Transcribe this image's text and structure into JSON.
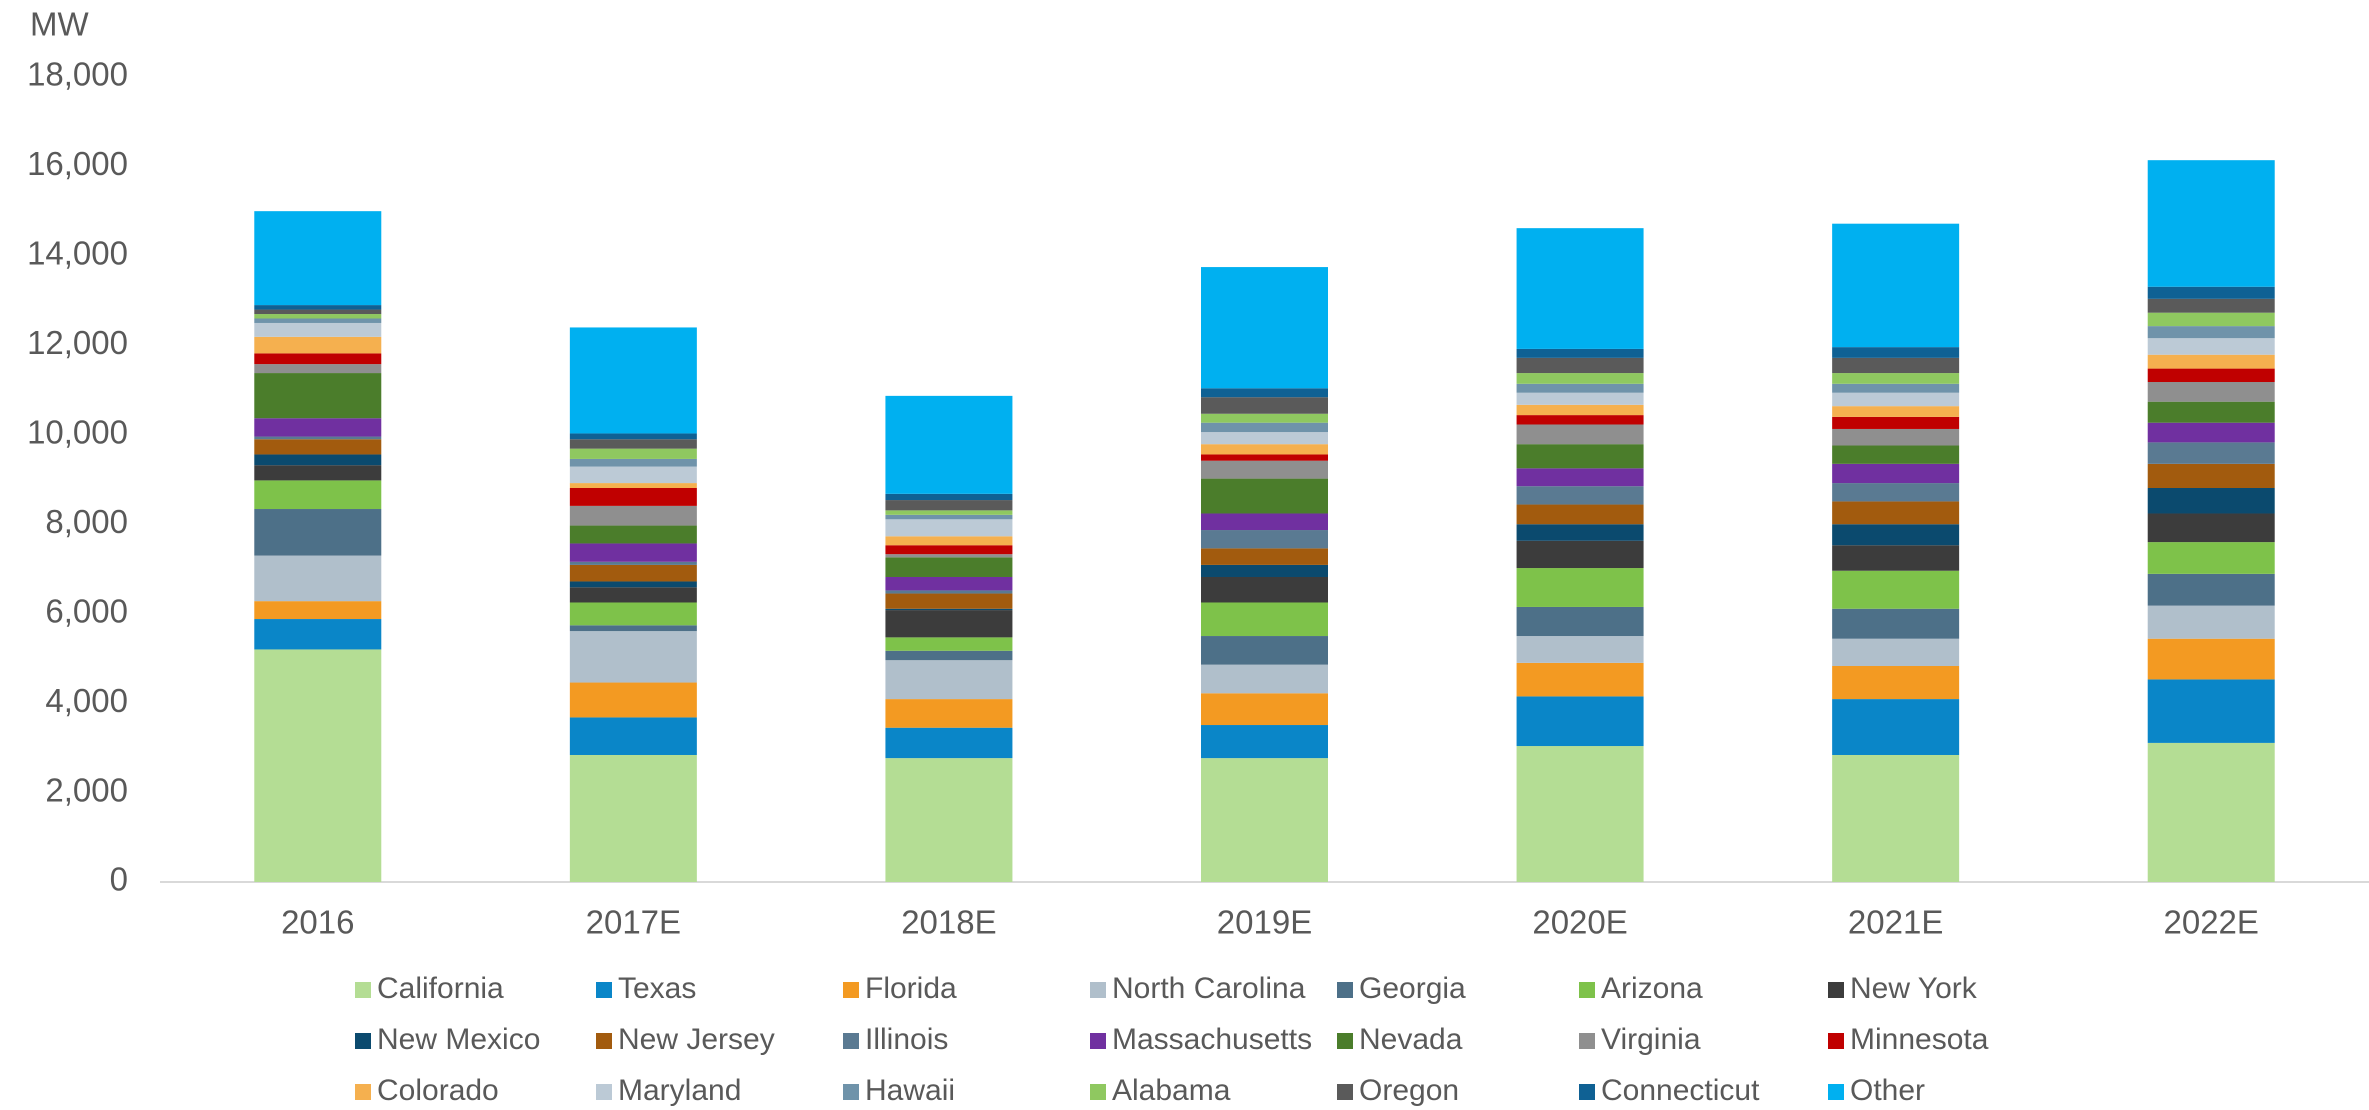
{
  "chart_data": {
    "type": "stacked_bar",
    "y_label": "MW",
    "categories": [
      "2016",
      "2017E",
      "2018E",
      "2019E",
      "2020E",
      "2021E",
      "2022E"
    ],
    "ylim": [
      0,
      18000
    ],
    "yticks": [
      0,
      {
        "value": 2000,
        "label": "2,000"
      },
      {
        "value": 4000,
        "label": "4,000"
      },
      {
        "value": 6000,
        "label": "6,000"
      },
      {
        "value": 8000,
        "label": "8,000"
      },
      {
        "value": 10000,
        "label": "10,000"
      },
      {
        "value": 12000,
        "label": "12,000"
      },
      {
        "value": 14000,
        "label": "14,000"
      },
      {
        "value": 16000,
        "label": "16,000"
      },
      {
        "value": 18000,
        "label": "18,000"
      }
    ],
    "grid": false,
    "legend": "bottom",
    "series": [
      {
        "name": "California",
        "color": "#b4dd94",
        "values": [
          5200,
          2840,
          2770,
          2770,
          3040,
          2840,
          3110
        ]
      },
      {
        "name": "Texas",
        "color": "#0a86c8",
        "values": [
          680,
          840,
          680,
          740,
          1110,
          1250,
          1420
        ]
      },
      {
        "name": "Florida",
        "color": "#f39a22",
        "values": [
          400,
          780,
          640,
          710,
          750,
          740,
          910
        ]
      },
      {
        "name": "North Carolina",
        "color": "#b0bfcb",
        "values": [
          1020,
          1150,
          870,
          640,
          600,
          610,
          740
        ]
      },
      {
        "name": "Georgia",
        "color": "#4d7088",
        "values": [
          1040,
          130,
          210,
          640,
          650,
          670,
          710
        ]
      },
      {
        "name": "Arizona",
        "color": "#7ec24a",
        "values": [
          640,
          510,
          300,
          750,
          870,
          850,
          710
        ]
      },
      {
        "name": "New York",
        "color": "#3c3c3c",
        "values": [
          340,
          340,
          610,
          570,
          610,
          570,
          640
        ]
      },
      {
        "name": "New Mexico",
        "color": "#0b4a6e",
        "values": [
          240,
          130,
          30,
          270,
          370,
          470,
          570
        ]
      },
      {
        "name": "New Jersey",
        "color": "#a25b0e",
        "values": [
          340,
          370,
          340,
          370,
          440,
          510,
          540
        ]
      },
      {
        "name": "Illinois",
        "color": "#5a7a92",
        "values": [
          60,
          70,
          70,
          410,
          410,
          410,
          480
        ]
      },
      {
        "name": "Massachusetts",
        "color": "#7030a0",
        "values": [
          410,
          410,
          300,
          370,
          400,
          430,
          440
        ]
      },
      {
        "name": "Nevada",
        "color": "#4b7d2b",
        "values": [
          1010,
          400,
          440,
          780,
          540,
          410,
          470
        ]
      },
      {
        "name": "Virginia",
        "color": "#8f8f8f",
        "values": [
          200,
          440,
          70,
          400,
          440,
          370,
          440
        ]
      },
      {
        "name": "Minnesota",
        "color": "#c00000",
        "values": [
          240,
          400,
          200,
          140,
          210,
          270,
          300
        ]
      },
      {
        "name": "Colorado",
        "color": "#f5b04f",
        "values": [
          370,
          110,
          200,
          230,
          230,
          240,
          310
        ]
      },
      {
        "name": "Maryland",
        "color": "#bccad6",
        "values": [
          310,
          370,
          380,
          270,
          270,
          300,
          370
        ]
      },
      {
        "name": "Hawaii",
        "color": "#6f93aa",
        "values": [
          100,
          170,
          100,
          210,
          200,
          200,
          270
        ]
      },
      {
        "name": "Alabama",
        "color": "#8fc860",
        "values": [
          100,
          230,
          100,
          200,
          240,
          240,
          300
        ]
      },
      {
        "name": "Oregon",
        "color": "#5a5a5a",
        "values": [
          100,
          210,
          230,
          370,
          340,
          340,
          310
        ]
      },
      {
        "name": "Connecticut",
        "color": "#0f6194",
        "values": [
          100,
          130,
          140,
          200,
          200,
          240,
          270
        ]
      },
      {
        "name": "Other",
        "color": "#00b0f0",
        "values": [
          2100,
          2370,
          2190,
          2710,
          2700,
          2760,
          2830
        ]
      }
    ]
  }
}
